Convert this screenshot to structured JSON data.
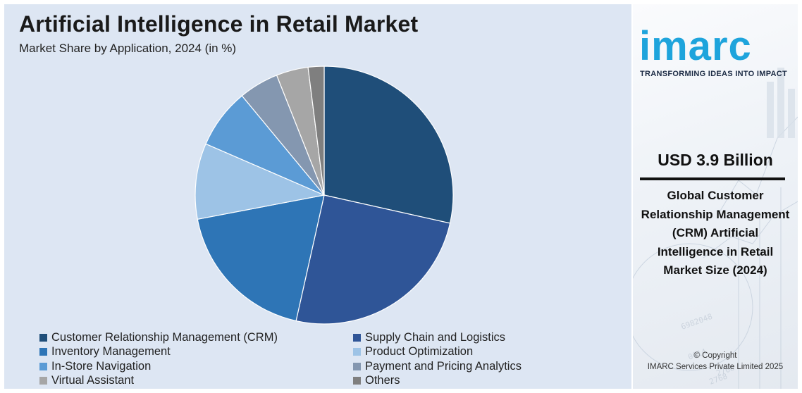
{
  "chart_data": {
    "type": "pie",
    "title": "Artificial Intelligence in Retail Market",
    "subtitle": "Market Share by Application, 2024 (in %)",
    "slices": [
      {
        "label": "Customer Relationship Management (CRM)",
        "value": 28.5,
        "color": "#1f4e79"
      },
      {
        "label": "Supply Chain and Logistics",
        "value": 25.0,
        "color": "#2f5597"
      },
      {
        "label": "Inventory Management",
        "value": 18.5,
        "color": "#2e75b6"
      },
      {
        "label": "Product Optimization",
        "value": 9.5,
        "color": "#9dc3e6"
      },
      {
        "label": "In-Store Navigation",
        "value": 7.5,
        "color": "#5b9bd5"
      },
      {
        "label": "Payment and Pricing Analytics",
        "value": 5.0,
        "color": "#8497b0"
      },
      {
        "label": "Virtual Assistant",
        "value": 4.0,
        "color": "#a6a6a6"
      },
      {
        "label": "Others",
        "value": 2.0,
        "color": "#7f7f7f"
      }
    ],
    "start_angle_deg": 0,
    "direction": "clockwise",
    "legend_position": "bottom"
  },
  "sidebar": {
    "logo_text": "imarc",
    "tagline": "TRANSFORMING IDEAS INTO IMPACT",
    "stat_value": "USD 3.9 Billion",
    "stat_description": "Global Customer Relationship Management (CRM) Artificial Intelligence in Retail Market Size (2024)",
    "copyright_line1": "© Copyright",
    "copyright_line2": "IMARC Services Private Limited 2025"
  },
  "colors": {
    "panel_background": "#dde6f3",
    "logo_blue": "#1ea4dc"
  }
}
